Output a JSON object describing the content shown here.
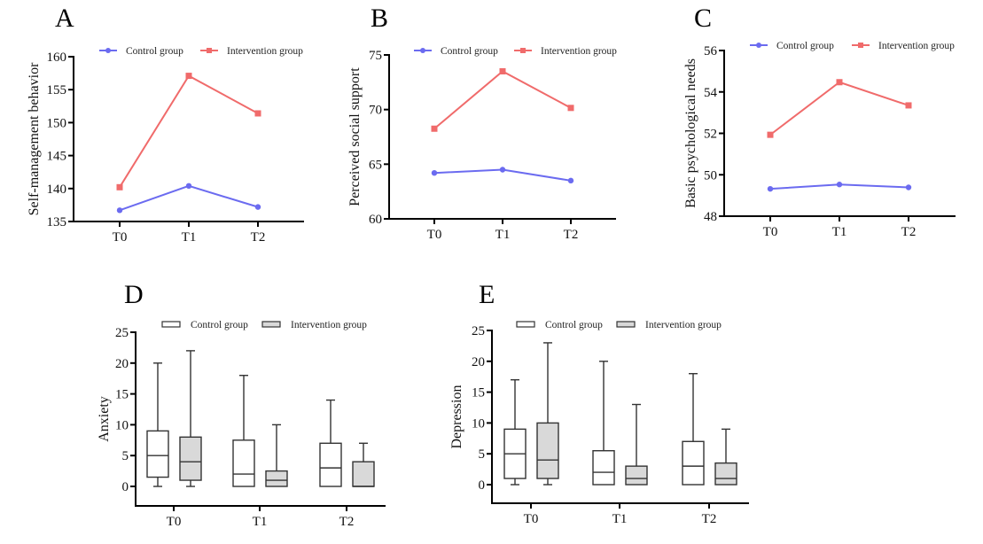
{
  "figure": {
    "panels": [
      "A",
      "B",
      "C",
      "D",
      "E"
    ]
  },
  "colors": {
    "control_line": "#6b6bf0",
    "intervention_line": "#f06b6b",
    "control_box_fill": "#ffffff",
    "intervention_box_fill": "#d9d9d9",
    "axis": "#000000"
  },
  "chart_data": [
    {
      "panel": "A",
      "type": "line",
      "title": "",
      "xlabel": "",
      "ylabel": "Self-management behavior",
      "categories": [
        "T0",
        "T1",
        "T2"
      ],
      "ylim": [
        135,
        160
      ],
      "yticks": [
        135,
        140,
        145,
        150,
        155,
        160
      ],
      "legend": [
        "Control group",
        "Intervention group"
      ],
      "legend_position": "top",
      "series": [
        {
          "name": "Control group",
          "marker": "circle",
          "values": [
            136.7,
            140.4,
            137.2
          ]
        },
        {
          "name": "Intervention group",
          "marker": "square",
          "values": [
            140.2,
            157.1,
            151.4
          ]
        }
      ]
    },
    {
      "panel": "B",
      "type": "line",
      "title": "",
      "xlabel": "",
      "ylabel": "Perceived social support",
      "categories": [
        "T0",
        "T1",
        "T2"
      ],
      "ylim": [
        60,
        75
      ],
      "yticks": [
        60,
        65,
        70,
        75
      ],
      "legend": [
        "Control group",
        "Intervention group"
      ],
      "legend_position": "top",
      "series": [
        {
          "name": "Control group",
          "marker": "circle",
          "values": [
            64.2,
            64.5,
            63.5
          ]
        },
        {
          "name": "Intervention group",
          "marker": "square",
          "values": [
            68.25,
            73.5,
            70.15
          ]
        }
      ]
    },
    {
      "panel": "C",
      "type": "line",
      "title": "",
      "xlabel": "",
      "ylabel": "Basic psychological needs",
      "categories": [
        "T0",
        "T1",
        "T2"
      ],
      "ylim": [
        48,
        56
      ],
      "yticks": [
        48,
        50,
        52,
        54,
        56
      ],
      "legend": [
        "Control group",
        "Intervention group"
      ],
      "legend_position": "top",
      "series": [
        {
          "name": "Control group",
          "marker": "circle",
          "values": [
            49.32,
            49.53,
            49.39
          ]
        },
        {
          "name": "Intervention group",
          "marker": "square",
          "values": [
            51.93,
            54.47,
            53.35
          ]
        }
      ]
    },
    {
      "panel": "D",
      "type": "box",
      "title": "",
      "xlabel": "",
      "ylabel": "Anxiety",
      "categories": [
        "T0",
        "T1",
        "T2"
      ],
      "ylim": [
        -3,
        25
      ],
      "yticks": [
        0,
        5,
        10,
        15,
        20,
        25
      ],
      "legend": [
        "Control group",
        "Intervention group"
      ],
      "legend_position": "top",
      "series": [
        {
          "name": "Control group",
          "boxes": [
            {
              "min": 0,
              "q1": 1.5,
              "median": 5,
              "q3": 9,
              "max": 20
            },
            {
              "min": 0,
              "q1": 0,
              "median": 2,
              "q3": 7.5,
              "max": 18
            },
            {
              "min": 0,
              "q1": 0,
              "median": 3,
              "q3": 7,
              "max": 14
            }
          ]
        },
        {
          "name": "Intervention group",
          "boxes": [
            {
              "min": 0,
              "q1": 1,
              "median": 4,
              "q3": 8,
              "max": 22
            },
            {
              "min": 0,
              "q1": 0,
              "median": 1,
              "q3": 2.5,
              "max": 10
            },
            {
              "min": 0,
              "q1": 0,
              "median": 0,
              "q3": 4,
              "max": 7
            }
          ]
        }
      ]
    },
    {
      "panel": "E",
      "type": "box",
      "title": "",
      "xlabel": "",
      "ylabel": "Depression",
      "categories": [
        "T0",
        "T1",
        "T2"
      ],
      "ylim": [
        -3,
        25
      ],
      "yticks": [
        0,
        5,
        10,
        15,
        20,
        25
      ],
      "legend": [
        "Control group",
        "Intervention group"
      ],
      "legend_position": "top",
      "series": [
        {
          "name": "Control group",
          "boxes": [
            {
              "min": 0,
              "q1": 1,
              "median": 5,
              "q3": 9,
              "max": 17
            },
            {
              "min": 0,
              "q1": 0,
              "median": 2,
              "q3": 5.5,
              "max": 20
            },
            {
              "min": 0,
              "q1": 0,
              "median": 3,
              "q3": 7,
              "max": 18
            }
          ]
        },
        {
          "name": "Intervention group",
          "boxes": [
            {
              "min": 0,
              "q1": 1,
              "median": 4,
              "q3": 10,
              "max": 23
            },
            {
              "min": 0,
              "q1": 0,
              "median": 1,
              "q3": 3,
              "max": 13
            },
            {
              "min": 0,
              "q1": 0,
              "median": 1,
              "q3": 3.5,
              "max": 9
            }
          ]
        }
      ]
    }
  ]
}
